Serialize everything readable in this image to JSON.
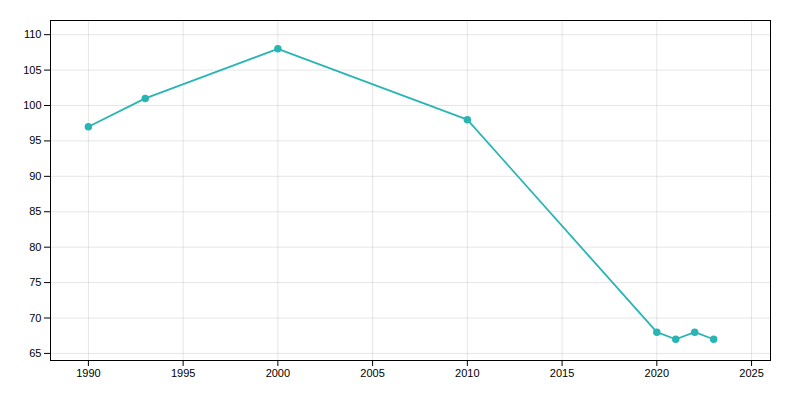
{
  "chart_data": {
    "type": "line",
    "x": [
      1990,
      1993,
      2000,
      2010,
      2020,
      2021,
      2022,
      2023
    ],
    "values": [
      97,
      101,
      108,
      98,
      68,
      67,
      68,
      67
    ],
    "color": "#2ab5b5",
    "marker": "circle",
    "xlim": [
      1988,
      2026
    ],
    "ylim": [
      64,
      112
    ],
    "xticks": [
      1990,
      1995,
      2000,
      2005,
      2010,
      2015,
      2020,
      2025
    ],
    "yticks": [
      65,
      70,
      75,
      80,
      85,
      90,
      95,
      100,
      105,
      110
    ],
    "grid": true
  }
}
